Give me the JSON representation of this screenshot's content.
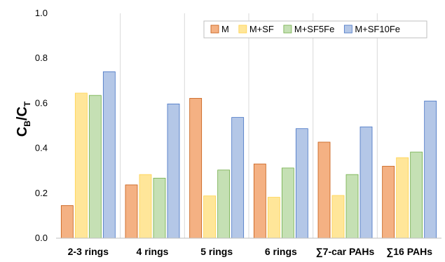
{
  "chart_data": {
    "type": "bar",
    "ylabel_main": "C",
    "ylabel_sub1": "B",
    "ylabel_sep": "/C",
    "ylabel_sub2": "T",
    "ylim": [
      0,
      1.0
    ],
    "yticks": [
      "0.0",
      "0.2",
      "0.4",
      "0.6",
      "0.8",
      "1.0"
    ],
    "ytick_values": [
      0.0,
      0.2,
      0.4,
      0.6,
      0.8,
      1.0
    ],
    "categories": [
      "2-3 rings",
      "4 rings",
      "5 rings",
      "6 rings",
      "∑7-car PAHs",
      "∑16 PAHs"
    ],
    "series": [
      {
        "name": "M",
        "color": "#f4b183",
        "stroke": "#c55a11",
        "values": [
          0.145,
          0.237,
          0.622,
          0.33,
          0.427,
          0.32
        ]
      },
      {
        "name": "M+SF",
        "color": "#ffe699",
        "stroke": "#ffd24d",
        "values": [
          0.645,
          0.283,
          0.188,
          0.182,
          0.19,
          0.358
        ]
      },
      {
        "name": "M+SF5Fe",
        "color": "#c5e0b4",
        "stroke": "#70ad47",
        "values": [
          0.635,
          0.267,
          0.303,
          0.312,
          0.283,
          0.383
        ]
      },
      {
        "name": "M+SF10Fe",
        "color": "#b4c7e7",
        "stroke": "#4472c4",
        "values": [
          0.74,
          0.597,
          0.537,
          0.487,
          0.495,
          0.61
        ]
      }
    ],
    "grid": "vertical-separators",
    "legend_position": "top-right"
  }
}
